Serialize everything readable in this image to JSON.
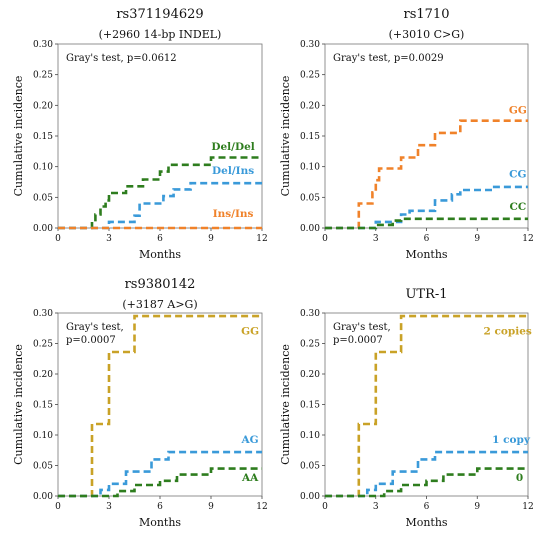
{
  "chart_data": [
    {
      "type": "line",
      "step": true,
      "title": "rs371194629",
      "subtitle": "(+2960 14-bp INDEL)",
      "xlabel": "Months",
      "ylabel": "Cumulative incidence",
      "xlim": [
        0,
        12
      ],
      "ylim": [
        0,
        0.3
      ],
      "xticks": [
        "0",
        "3",
        "6",
        "9",
        "12"
      ],
      "yticks": [
        "0.00",
        "0.05",
        "0.10",
        "0.15",
        "0.20",
        "0.25",
        "0.30"
      ],
      "annotation": [
        "Gray's test, p=0.0612"
      ],
      "series": [
        {
          "name": "Del/Del",
          "color": "#2e7d1e",
          "label_at": [
            10.3,
            0.127
          ],
          "points": [
            [
              0,
              0
            ],
            [
              2,
              0
            ],
            [
              2,
              0.01
            ],
            [
              2.2,
              0.01
            ],
            [
              2.2,
              0.022
            ],
            [
              2.5,
              0.022
            ],
            [
              2.5,
              0.035
            ],
            [
              2.8,
              0.035
            ],
            [
              2.8,
              0.045
            ],
            [
              3,
              0.045
            ],
            [
              3,
              0.057
            ],
            [
              4,
              0.057
            ],
            [
              4,
              0.068
            ],
            [
              5,
              0.068
            ],
            [
              5,
              0.079
            ],
            [
              6,
              0.079
            ],
            [
              6,
              0.092
            ],
            [
              6.5,
              0.092
            ],
            [
              6.5,
              0.103
            ],
            [
              9,
              0.103
            ],
            [
              9,
              0.115
            ],
            [
              12,
              0.115
            ]
          ]
        },
        {
          "name": "Del/Ins",
          "color": "#3a9ad9",
          "label_at": [
            10.3,
            0.088
          ],
          "points": [
            [
              0,
              0
            ],
            [
              3,
              0
            ],
            [
              3,
              0.01
            ],
            [
              4.5,
              0.01
            ],
            [
              4.5,
              0.02
            ],
            [
              4.8,
              0.02
            ],
            [
              4.8,
              0.04
            ],
            [
              6.2,
              0.04
            ],
            [
              6.2,
              0.052
            ],
            [
              6.8,
              0.052
            ],
            [
              6.8,
              0.063
            ],
            [
              7.8,
              0.063
            ],
            [
              7.8,
              0.073
            ],
            [
              12,
              0.073
            ]
          ]
        },
        {
          "name": "Ins/Ins",
          "color": "#f0822a",
          "label_at": [
            10.3,
            0.018
          ],
          "points": [
            [
              0,
              0
            ],
            [
              12,
              0
            ]
          ]
        }
      ]
    },
    {
      "type": "line",
      "step": true,
      "title": "rs1710",
      "subtitle": "(+3010 C>G)",
      "xlabel": "Months",
      "ylabel": "Cumulative incidence",
      "xlim": [
        0,
        12
      ],
      "ylim": [
        0,
        0.3
      ],
      "xticks": [
        "0",
        "3",
        "6",
        "9",
        "12"
      ],
      "yticks": [
        "0.00",
        "0.05",
        "0.10",
        "0.15",
        "0.20",
        "0.25",
        "0.30"
      ],
      "annotation": [
        "Gray's test, p=0.0029"
      ],
      "series": [
        {
          "name": "GG",
          "color": "#f0822a",
          "label_at": [
            11.4,
            0.187
          ],
          "points": [
            [
              0,
              0
            ],
            [
              2,
              0
            ],
            [
              2,
              0.04
            ],
            [
              2.8,
              0.04
            ],
            [
              2.8,
              0.058
            ],
            [
              3,
              0.058
            ],
            [
              3,
              0.078
            ],
            [
              3.2,
              0.078
            ],
            [
              3.2,
              0.097
            ],
            [
              4.5,
              0.097
            ],
            [
              4.5,
              0.115
            ],
            [
              5.5,
              0.115
            ],
            [
              5.5,
              0.135
            ],
            [
              6.5,
              0.135
            ],
            [
              6.5,
              0.155
            ],
            [
              8,
              0.155
            ],
            [
              8,
              0.175
            ],
            [
              12,
              0.175
            ]
          ]
        },
        {
          "name": "CG",
          "color": "#3a9ad9",
          "label_at": [
            11.4,
            0.082
          ],
          "points": [
            [
              0,
              0
            ],
            [
              3,
              0
            ],
            [
              3,
              0.01
            ],
            [
              4.5,
              0.01
            ],
            [
              4.5,
              0.022
            ],
            [
              5,
              0.022
            ],
            [
              5,
              0.028
            ],
            [
              6.5,
              0.028
            ],
            [
              6.5,
              0.045
            ],
            [
              7.5,
              0.045
            ],
            [
              7.5,
              0.055
            ],
            [
              8,
              0.055
            ],
            [
              8,
              0.062
            ],
            [
              10,
              0.062
            ],
            [
              10,
              0.067
            ],
            [
              12,
              0.067
            ]
          ]
        },
        {
          "name": "CC",
          "color": "#2e7d1e",
          "label_at": [
            11.4,
            0.029
          ],
          "points": [
            [
              0,
              0
            ],
            [
              3,
              0
            ],
            [
              3,
              0.005
            ],
            [
              4,
              0.005
            ],
            [
              4,
              0.012
            ],
            [
              4.5,
              0.012
            ],
            [
              4.5,
              0.015
            ],
            [
              12,
              0.015
            ]
          ]
        }
      ]
    },
    {
      "type": "line",
      "step": true,
      "title": "rs9380142",
      "subtitle": "(+3187 A>G)",
      "xlabel": "Months",
      "ylabel": "Cumulative incidence",
      "xlim": [
        0,
        12
      ],
      "ylim": [
        0,
        0.3
      ],
      "xticks": [
        "0",
        "3",
        "6",
        "9",
        "12"
      ],
      "yticks": [
        "0.00",
        "0.05",
        "0.10",
        "0.15",
        "0.20",
        "0.25",
        "0.30"
      ],
      "annotation": [
        "Gray's test,",
        "p=0.0007"
      ],
      "series": [
        {
          "name": "GG",
          "color": "#c9a227",
          "label_at": [
            11.3,
            0.265
          ],
          "points": [
            [
              0,
              0
            ],
            [
              2,
              0
            ],
            [
              2,
              0.118
            ],
            [
              3,
              0.118
            ],
            [
              3,
              0.236
            ],
            [
              4.5,
              0.236
            ],
            [
              4.5,
              0.295
            ],
            [
              12,
              0.295
            ]
          ]
        },
        {
          "name": "AG",
          "color": "#3a9ad9",
          "label_at": [
            11.3,
            0.087
          ],
          "points": [
            [
              0,
              0
            ],
            [
              2.5,
              0
            ],
            [
              2.5,
              0.01
            ],
            [
              3,
              0.01
            ],
            [
              3,
              0.02
            ],
            [
              4,
              0.02
            ],
            [
              4,
              0.04
            ],
            [
              5.5,
              0.04
            ],
            [
              5.5,
              0.06
            ],
            [
              6.5,
              0.06
            ],
            [
              6.5,
              0.072
            ],
            [
              12,
              0.072
            ]
          ]
        },
        {
          "name": "AA",
          "color": "#2e7d1e",
          "label_at": [
            11.3,
            0.025
          ],
          "points": [
            [
              0,
              0
            ],
            [
              3.5,
              0
            ],
            [
              3.5,
              0.008
            ],
            [
              4.5,
              0.008
            ],
            [
              4.5,
              0.018
            ],
            [
              6,
              0.018
            ],
            [
              6,
              0.025
            ],
            [
              7,
              0.025
            ],
            [
              7,
              0.035
            ],
            [
              9,
              0.035
            ],
            [
              9,
              0.045
            ],
            [
              12,
              0.045
            ]
          ]
        }
      ]
    },
    {
      "type": "line",
      "step": true,
      "title": "UTR-1",
      "subtitle": "",
      "xlabel": "Months",
      "ylabel": "Cumulative incidence",
      "xlim": [
        0,
        12
      ],
      "ylim": [
        0,
        0.3
      ],
      "xticks": [
        "0",
        "3",
        "6",
        "9",
        "12"
      ],
      "yticks": [
        "0.00",
        "0.05",
        "0.10",
        "0.15",
        "0.20",
        "0.25",
        "0.30"
      ],
      "annotation": [
        "Gray's test,",
        "p=0.0007"
      ],
      "series": [
        {
          "name": "2 copies",
          "color": "#c9a227",
          "label_at": [
            10.8,
            0.265
          ],
          "points": [
            [
              0,
              0
            ],
            [
              2,
              0
            ],
            [
              2,
              0.118
            ],
            [
              3,
              0.118
            ],
            [
              3,
              0.236
            ],
            [
              4.5,
              0.236
            ],
            [
              4.5,
              0.295
            ],
            [
              12,
              0.295
            ]
          ]
        },
        {
          "name": "1 copy",
          "color": "#3a9ad9",
          "label_at": [
            11.0,
            0.087
          ],
          "points": [
            [
              0,
              0
            ],
            [
              2.5,
              0
            ],
            [
              2.5,
              0.01
            ],
            [
              3,
              0.01
            ],
            [
              3,
              0.02
            ],
            [
              4,
              0.02
            ],
            [
              4,
              0.04
            ],
            [
              5.5,
              0.04
            ],
            [
              5.5,
              0.06
            ],
            [
              6.5,
              0.06
            ],
            [
              6.5,
              0.072
            ],
            [
              12,
              0.072
            ]
          ]
        },
        {
          "name": "0",
          "color": "#2e7d1e",
          "label_at": [
            11.5,
            0.025
          ],
          "points": [
            [
              0,
              0
            ],
            [
              3.5,
              0
            ],
            [
              3.5,
              0.008
            ],
            [
              4.5,
              0.008
            ],
            [
              4.5,
              0.018
            ],
            [
              6,
              0.018
            ],
            [
              6,
              0.025
            ],
            [
              7,
              0.025
            ],
            [
              7,
              0.035
            ],
            [
              9,
              0.035
            ],
            [
              9,
              0.045
            ],
            [
              12,
              0.045
            ]
          ]
        }
      ]
    }
  ]
}
